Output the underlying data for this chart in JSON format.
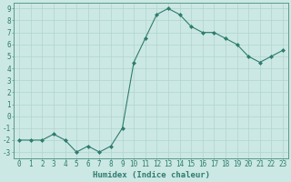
{
  "x": [
    0,
    1,
    2,
    3,
    4,
    5,
    6,
    7,
    8,
    9,
    10,
    11,
    12,
    13,
    14,
    15,
    16,
    17,
    18,
    19,
    20,
    21,
    22,
    23
  ],
  "y": [
    -2,
    -2,
    -2,
    -1.5,
    -2,
    -3,
    -2.5,
    -3,
    -2.5,
    -1,
    4.5,
    6.5,
    8.5,
    9,
    8.5,
    7.5,
    7,
    7,
    6.5,
    6,
    5,
    4.5,
    5,
    5.5
  ],
  "line_color": "#2e7d6e",
  "marker": "D",
  "marker_size": 2.0,
  "bg_color": "#cce8e4",
  "grid_color": "#b0d4ce",
  "xlabel": "Humidex (Indice chaleur)",
  "ylim": [
    -3.5,
    9.5
  ],
  "xlim": [
    -0.5,
    23.5
  ],
  "yticks": [
    -3,
    -2,
    -1,
    0,
    1,
    2,
    3,
    4,
    5,
    6,
    7,
    8,
    9
  ],
  "xticks": [
    0,
    1,
    2,
    3,
    4,
    5,
    6,
    7,
    8,
    9,
    10,
    11,
    12,
    13,
    14,
    15,
    16,
    17,
    18,
    19,
    20,
    21,
    22,
    23
  ],
  "xlabel_fontsize": 6.5,
  "tick_fontsize": 5.5,
  "label_color": "#2e7d6e",
  "spine_color": "#5a9a8a"
}
